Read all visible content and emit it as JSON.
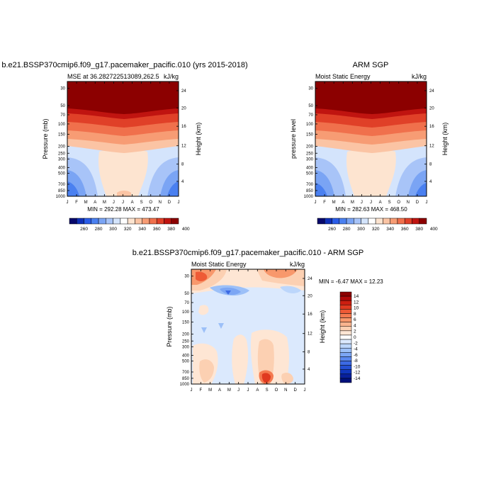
{
  "chart_data": [
    {
      "type": "heatmap",
      "title": "b.e21.BSSP370cmip6.f09_g17.pacemaker_pacific.010 (yrs 2015-2018)",
      "subtitle_left": "MSE at 36.282722513089,262.5",
      "subtitle_right": "kJ/kg",
      "ylabel": "Pressure (mb)",
      "ylabel_right": "Height (km)",
      "stats": "MIN = 292.28 MAX = 473.47",
      "x_ticks": [
        "J",
        "F",
        "M",
        "A",
        "M",
        "J",
        "J",
        "A",
        "S",
        "O",
        "N",
        "D",
        "J"
      ],
      "y_ticks": [
        "30",
        "50",
        "70",
        "100",
        "150",
        "200",
        "250",
        "300",
        "400",
        "500",
        "700",
        "850",
        "1000"
      ],
      "y_right_ticks": [
        "24",
        "20",
        "16",
        "12",
        "8",
        "4"
      ],
      "min": 292.28,
      "max": 473.47,
      "colormap": "temperature"
    },
    {
      "type": "heatmap",
      "title": "ARM SGP",
      "subtitle_left": "Moist Static Energy",
      "subtitle_right": "kJ/kg",
      "ylabel": "pressure level",
      "ylabel_right": "Height (km)",
      "stats": "MIN = 282.63 MAX = 468.50",
      "x_ticks": [
        "J",
        "F",
        "M",
        "A",
        "M",
        "J",
        "J",
        "A",
        "S",
        "O",
        "N",
        "D",
        "J"
      ],
      "y_ticks": [
        "30",
        "50",
        "70",
        "100",
        "150",
        "200",
        "250",
        "300",
        "400",
        "500",
        "700",
        "850",
        "1000"
      ],
      "y_right_ticks": [
        "24",
        "20",
        "16",
        "12",
        "8",
        "4"
      ],
      "min": 282.63,
      "max": 468.5,
      "colormap": "temperature"
    },
    {
      "type": "heatmap",
      "title": "b.e21.BSSP370cmip6.f09_g17.pacemaker_pacific.010 - ARM SGP",
      "subtitle_left": "Moist Static Energy",
      "subtitle_right": "kJ/kg",
      "ylabel": "Pressure (mb)",
      "ylabel_right": "Height (km)",
      "stats": "MIN =  -6.47 MAX =  12.23",
      "x_ticks": [
        "J",
        "F",
        "M",
        "A",
        "M",
        "J",
        "J",
        "A",
        "S",
        "O",
        "N",
        "D",
        "J"
      ],
      "y_ticks": [
        "30",
        "50",
        "70",
        "100",
        "150",
        "200",
        "250",
        "300",
        "400",
        "500",
        "700",
        "850",
        "1000"
      ],
      "y_right_ticks": [
        "24",
        "20",
        "16",
        "12",
        "8",
        "4"
      ],
      "min": -6.47,
      "max": 12.23,
      "colormap": "difference"
    }
  ],
  "colorbar_abs": {
    "labels": [
      "260",
      "280",
      "300",
      "320",
      "340",
      "360",
      "380",
      "400"
    ],
    "colors": [
      "#08086b",
      "#1030b8",
      "#2a5ce8",
      "#4a80f0",
      "#7aa4f4",
      "#a8c4f8",
      "#d4e4fc",
      "#ffffff",
      "#fde4d0",
      "#fbc4a4",
      "#f79c74",
      "#f0704c",
      "#e04028",
      "#c01410",
      "#8c0000"
    ]
  },
  "colorbar_diff": {
    "labels": [
      "14",
      "12",
      "10",
      "8",
      "6",
      "4",
      "2",
      "0",
      "-2",
      "-4",
      "-6",
      "-8",
      "-10",
      "-12",
      "-14"
    ],
    "colors": [
      "#8c0000",
      "#b00808",
      "#cc1e10",
      "#e03a20",
      "#ee5a36",
      "#f47a50",
      "#f8986c",
      "#fab48e",
      "#fcd0b2",
      "#fee6d4",
      "#ffffff",
      "#dbe9fd",
      "#bcd6fb",
      "#9cc0f8",
      "#7ca6f4",
      "#5a88ee",
      "#3c6ae4",
      "#2450d4",
      "#1036bc",
      "#08209c",
      "#00107a"
    ]
  }
}
